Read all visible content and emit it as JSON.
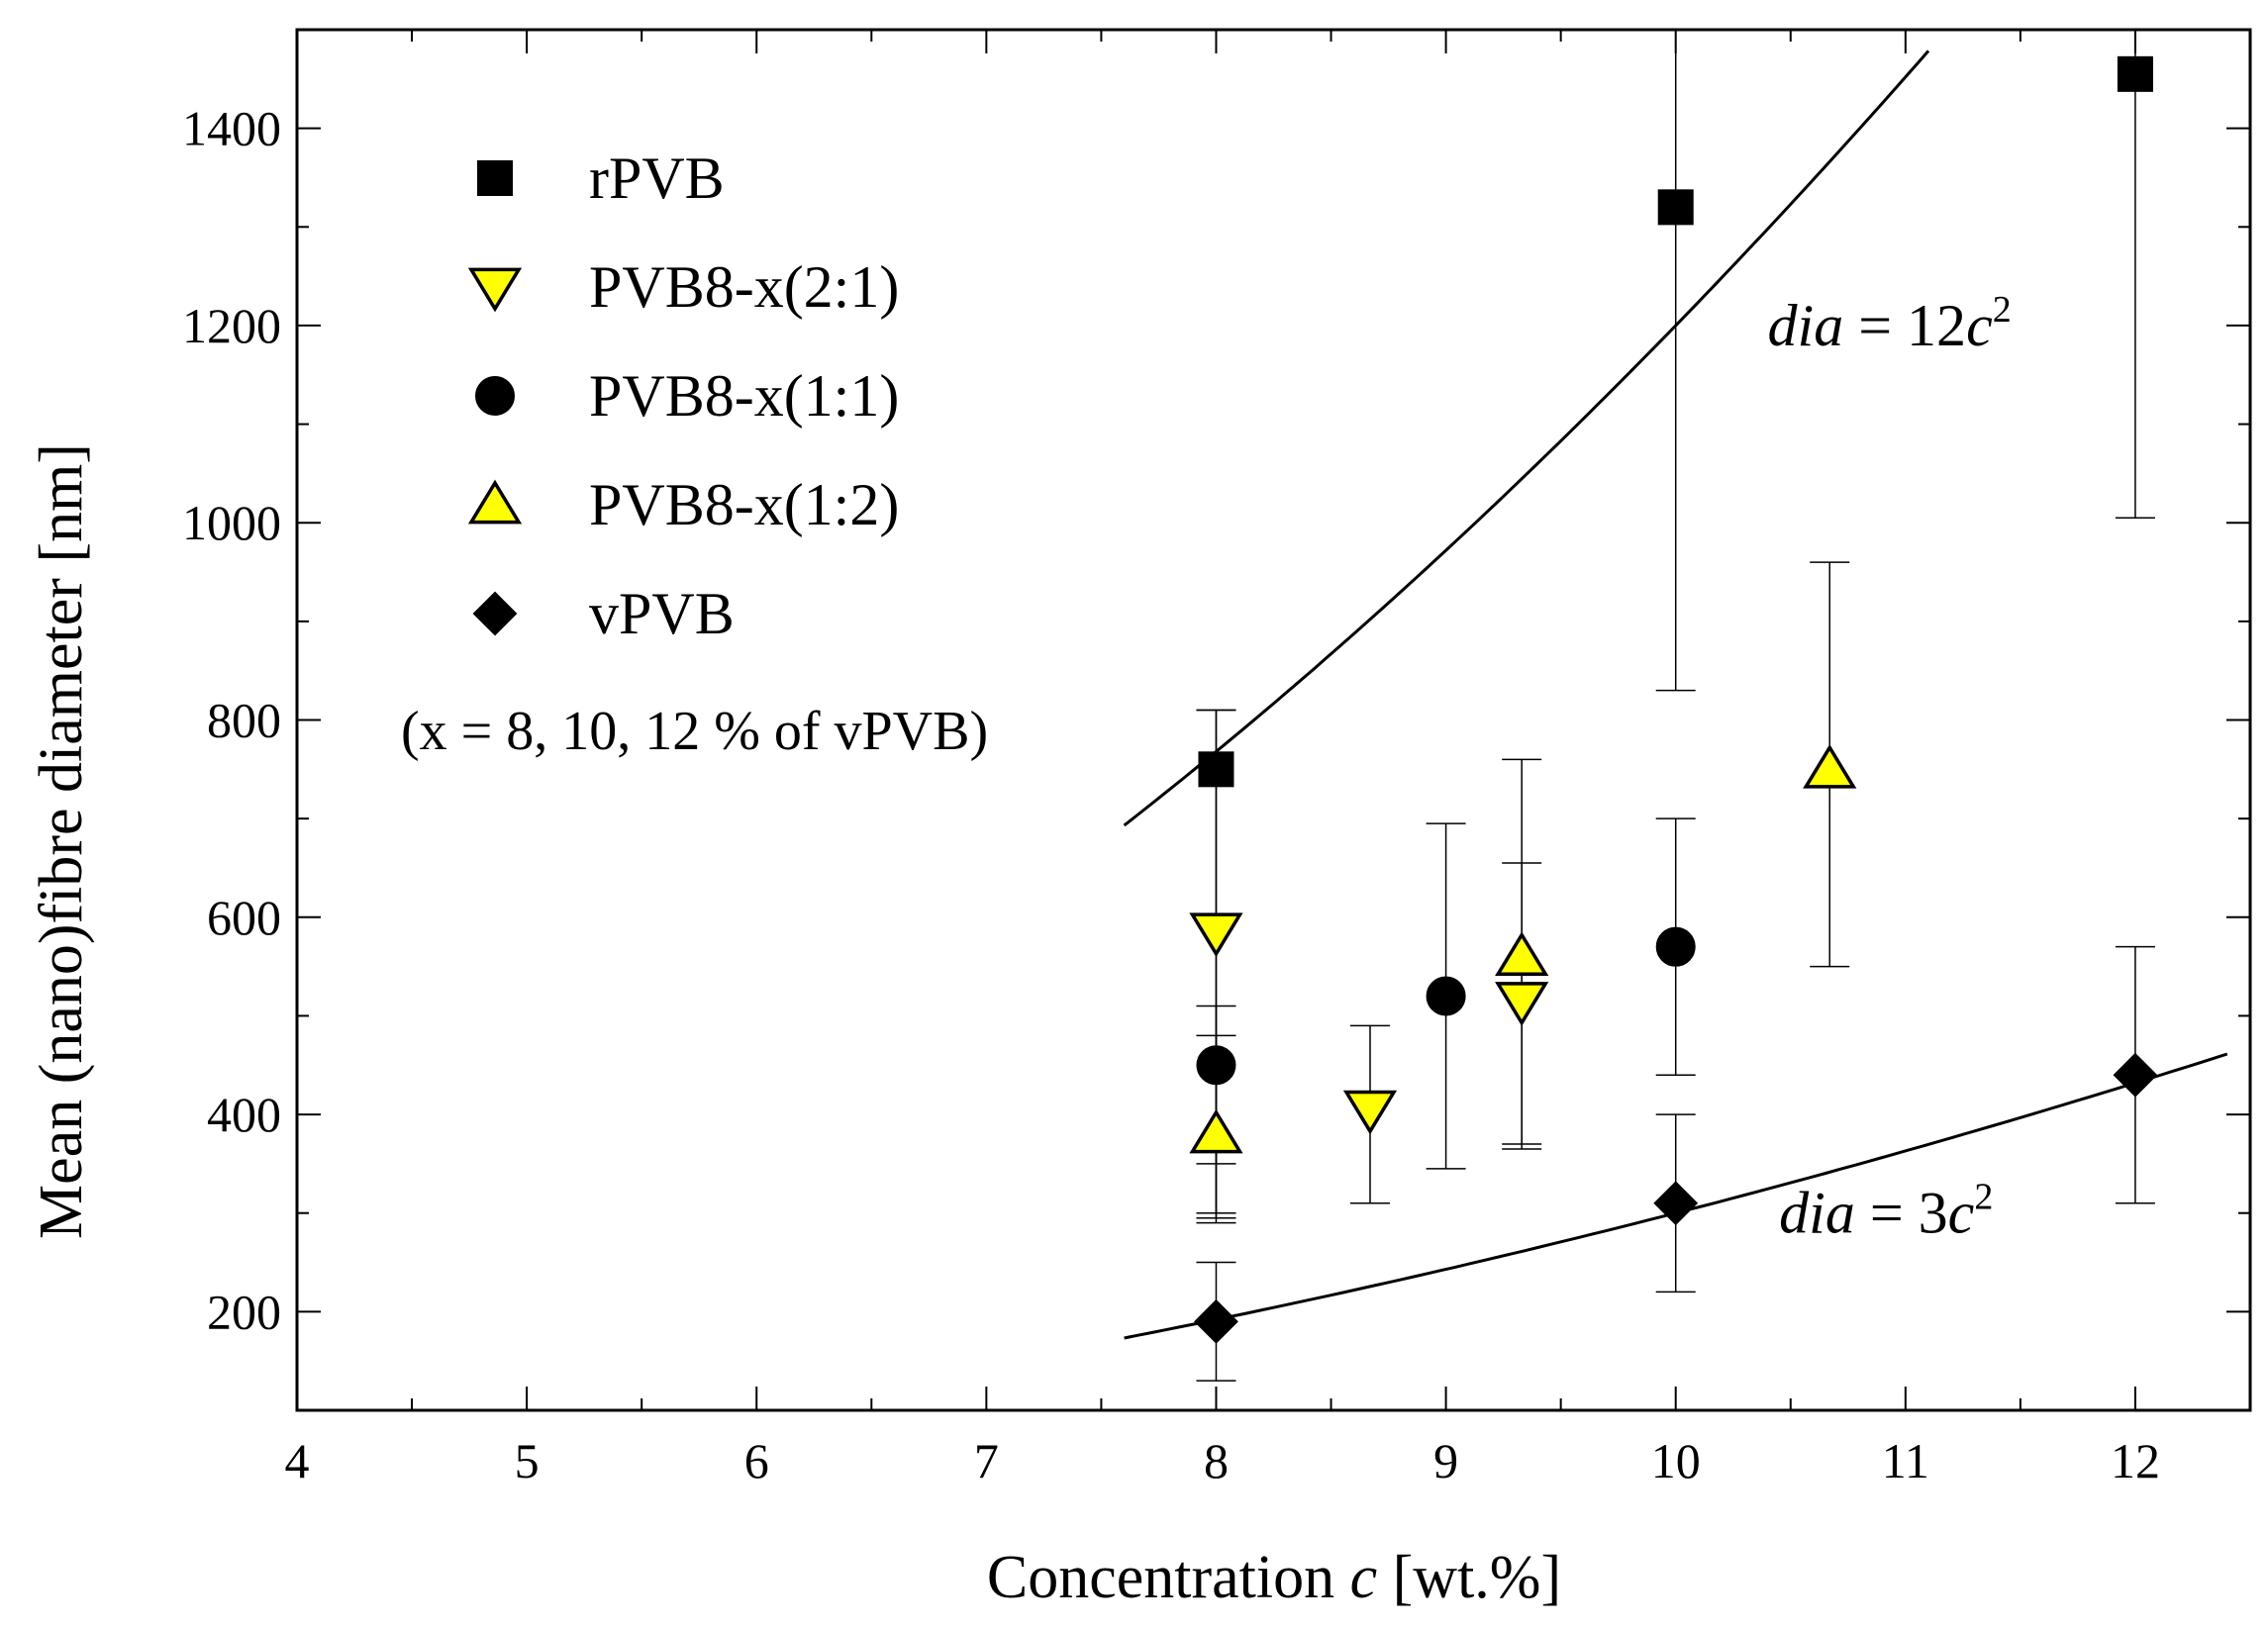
{
  "chart_data": {
    "type": "scatter",
    "title": "",
    "xlabel_prefix": "Concentration ",
    "xlabel_var": "c",
    "xlabel_suffix": " [wt.%]",
    "ylabel": "Mean (nano)fibre diameter [nm]",
    "xlim": [
      4,
      12.5
    ],
    "ylim": [
      100,
      1500
    ],
    "xticks": [
      4,
      5,
      6,
      7,
      8,
      9,
      10,
      11,
      12
    ],
    "yticks": [
      200,
      400,
      600,
      800,
      1000,
      1200,
      1400
    ],
    "xminor_step": 0.5,
    "yminor_step": 100,
    "grid": false,
    "legend_position": "top-left",
    "series": [
      {
        "name": "rPVB",
        "marker": "square",
        "fill": "#000000",
        "points": [
          {
            "x": 8,
            "y": 750,
            "lo": 290,
            "hi": 810
          },
          {
            "x": 10,
            "y": 1320,
            "lo": 830,
            "hi": 1500
          },
          {
            "x": 12,
            "y": 1455,
            "lo": 1005,
            "hi": 1500
          }
        ]
      },
      {
        "name": "PVB8-x(2:1)",
        "marker": "triangle-down",
        "fill": "#ffff00",
        "points": [
          {
            "x": 8,
            "y": 585,
            "lo": 350,
            "hi": 810
          },
          {
            "x": 8.67,
            "y": 405,
            "lo": 310,
            "hi": 490
          },
          {
            "x": 9.33,
            "y": 515,
            "lo": 365,
            "hi": 655
          }
        ]
      },
      {
        "name": "PVB8-x(1:1)",
        "marker": "circle",
        "fill": "#000000",
        "points": [
          {
            "x": 8,
            "y": 450,
            "lo": 300,
            "hi": 510
          },
          {
            "x": 9,
            "y": 520,
            "lo": 345,
            "hi": 695
          },
          {
            "x": 10,
            "y": 570,
            "lo": 440,
            "hi": 700
          }
        ]
      },
      {
        "name": "PVB8-x(1:2)",
        "marker": "triangle-up",
        "fill": "#ffff00",
        "points": [
          {
            "x": 8,
            "y": 380,
            "lo": 295,
            "hi": 480
          },
          {
            "x": 9.33,
            "y": 560,
            "lo": 370,
            "hi": 760
          },
          {
            "x": 10.67,
            "y": 750,
            "lo": 550,
            "hi": 960
          }
        ]
      },
      {
        "name": "vPVB",
        "marker": "diamond",
        "fill": "#000000",
        "points": [
          {
            "x": 8,
            "y": 190,
            "lo": 130,
            "hi": 250
          },
          {
            "x": 10,
            "y": 310,
            "lo": 220,
            "hi": 400
          },
          {
            "x": 12,
            "y": 440,
            "lo": 310,
            "hi": 570
          }
        ]
      }
    ],
    "fits": [
      {
        "name": "dia = 12c^2",
        "coef": 12,
        "x_range": [
          7.6,
          11.1
        ],
        "label_italic": "dia",
        "label_rest": " = 12",
        "label_var": "c",
        "label_sup": "2",
        "label_at": [
          10.4,
          1200
        ]
      },
      {
        "name": "dia = 3c^2",
        "coef": 3,
        "x_range": [
          7.6,
          12.4
        ],
        "label_italic": "dia",
        "label_rest": " = 3",
        "label_var": "c",
        "label_sup": "2",
        "label_at": [
          10.45,
          300
        ]
      }
    ],
    "legend_note": "(x = 8, 10, 12 % of vPVB)"
  }
}
